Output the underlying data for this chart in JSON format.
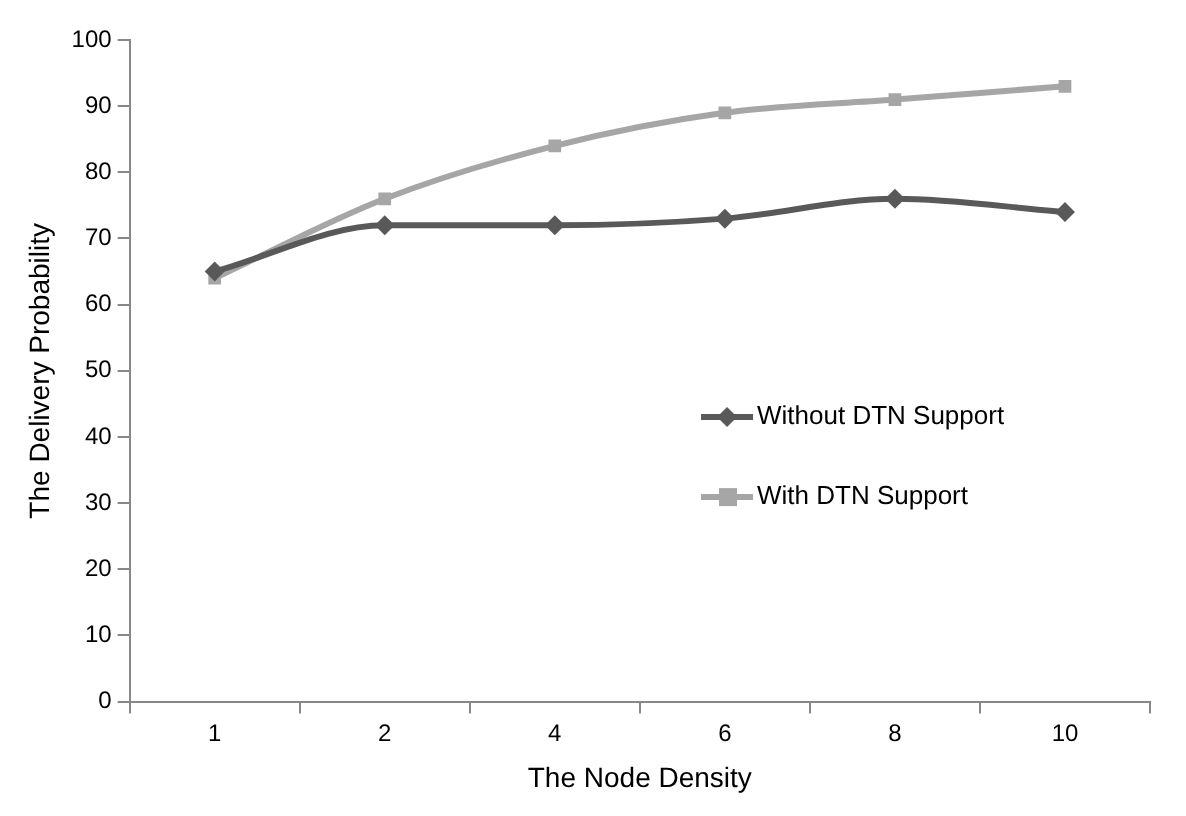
{
  "chart_data": {
    "type": "line",
    "xlabel": "The Node Density",
    "ylabel": "The Delivery Probability",
    "categories": [
      "1",
      "2",
      "4",
      "6",
      "8",
      "10"
    ],
    "series": [
      {
        "name": "Without DTN Support",
        "color": "#595959",
        "marker": "diamond",
        "values": [
          65,
          72,
          72,
          73,
          76,
          74
        ]
      },
      {
        "name": "With DTN Support",
        "color": "#a6a6a6",
        "marker": "square",
        "values": [
          64,
          76,
          84,
          89,
          91,
          93
        ]
      }
    ],
    "ylim": [
      0,
      100
    ],
    "yticks": [
      0,
      10,
      20,
      30,
      40,
      50,
      60,
      70,
      80,
      90,
      100
    ],
    "grid": false,
    "legend": "right",
    "line_style": "solid"
  }
}
